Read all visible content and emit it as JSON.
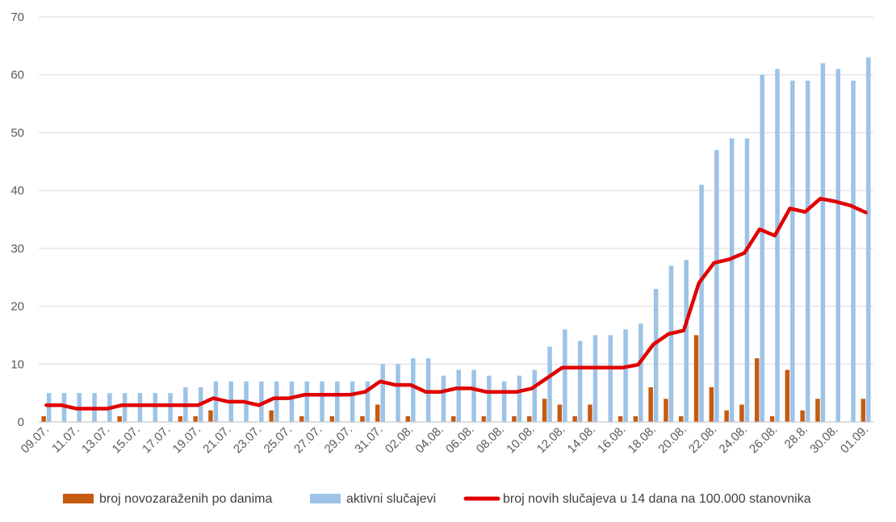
{
  "chart_data": {
    "type": "bar",
    "title": "",
    "xlabel": "",
    "ylabel": "",
    "ylim": [
      0,
      70
    ],
    "yticks": [
      0,
      10,
      20,
      30,
      40,
      50,
      60,
      70
    ],
    "grid": true,
    "legend_position": "bottom",
    "categories": [
      "09.07.",
      "10.07.",
      "11.07.",
      "12.07.",
      "13.07.",
      "14.07.",
      "15.07.",
      "16.07.",
      "17.07.",
      "18.07.",
      "19.07.",
      "20.07.",
      "21.07.",
      "22.07.",
      "23.07.",
      "24.07.",
      "25.07.",
      "26.07.",
      "27.07.",
      "28.07.",
      "29.07.",
      "30.07.",
      "31.07.",
      "01.08.",
      "02.08.",
      "03.08.",
      "04.08.",
      "05.08.",
      "06.08.",
      "07.08.",
      "08.08.",
      "09.08.",
      "10.08.",
      "11.08.",
      "12.08.",
      "13.08.",
      "14.08.",
      "15.08.",
      "16.08.",
      "17.08.",
      "18.08.",
      "19.08.",
      "20.08.",
      "21.08.",
      "22.08.",
      "23.08.",
      "24.08.",
      "25.08.",
      "26.08.",
      "27.08.",
      "28.8.",
      "29.08.",
      "30.08.",
      "31.08.",
      "01.09."
    ],
    "x_tick_labels_shown": [
      "09.07.",
      "11.07.",
      "13.07.",
      "15.07.",
      "17.07.",
      "19.07.",
      "21.07.",
      "23.07.",
      "25.07.",
      "27.07.",
      "29.07.",
      "31.07.",
      "02.08.",
      "04.08.",
      "06.08.",
      "08.08.",
      "10.08.",
      "12.08.",
      "14.08.",
      "16.08.",
      "18.08.",
      "20.08.",
      "22.08.",
      "24.08.",
      "26.08.",
      "28.8.",
      "30.08.",
      "01.09."
    ],
    "series": [
      {
        "name": "broj novozaraženih po danima",
        "kind": "bar",
        "color": "#C55A11",
        "values": [
          1,
          0,
          0,
          0,
          0,
          1,
          0,
          0,
          0,
          1,
          1,
          2,
          0,
          0,
          0,
          2,
          0,
          1,
          0,
          1,
          0,
          1,
          3,
          0,
          1,
          0,
          0,
          1,
          0,
          1,
          0,
          1,
          1,
          4,
          3,
          1,
          3,
          0,
          1,
          1,
          6,
          4,
          1,
          15,
          6,
          2,
          3,
          11,
          1,
          9,
          2,
          4,
          0,
          0,
          4
        ]
      },
      {
        "name": "aktivni slučajevi",
        "kind": "bar",
        "color": "#9DC3E6",
        "values": [
          5,
          5,
          5,
          5,
          5,
          5,
          5,
          5,
          5,
          6,
          6,
          7,
          7,
          7,
          7,
          7,
          7,
          7,
          7,
          7,
          7,
          7,
          10,
          10,
          11,
          11,
          8,
          9,
          9,
          8,
          7,
          8,
          9,
          13,
          16,
          14,
          15,
          15,
          16,
          17,
          23,
          27,
          28,
          41,
          47,
          49,
          49,
          60,
          61,
          59,
          59,
          62,
          61,
          59,
          63
        ]
      },
      {
        "name": "broj novih slučajeva u 14 dana na 100.000 stanovnika",
        "kind": "line",
        "color": "#E00000",
        "values": [
          2.9,
          2.9,
          2.3,
          2.3,
          2.3,
          2.9,
          2.9,
          2.9,
          2.9,
          2.9,
          2.9,
          4.1,
          3.5,
          3.5,
          2.9,
          4.1,
          4.1,
          4.7,
          4.7,
          4.7,
          4.7,
          5.2,
          7.0,
          6.4,
          6.4,
          5.2,
          5.2,
          5.8,
          5.8,
          5.2,
          5.2,
          5.2,
          5.8,
          7.6,
          9.4,
          9.4,
          9.4,
          9.4,
          9.4,
          9.9,
          13.4,
          15.2,
          15.8,
          24.0,
          27.5,
          28.1,
          29.2,
          33.3,
          32.2,
          36.9,
          36.3,
          38.6,
          38.1,
          37.4,
          36.2
        ]
      }
    ]
  }
}
